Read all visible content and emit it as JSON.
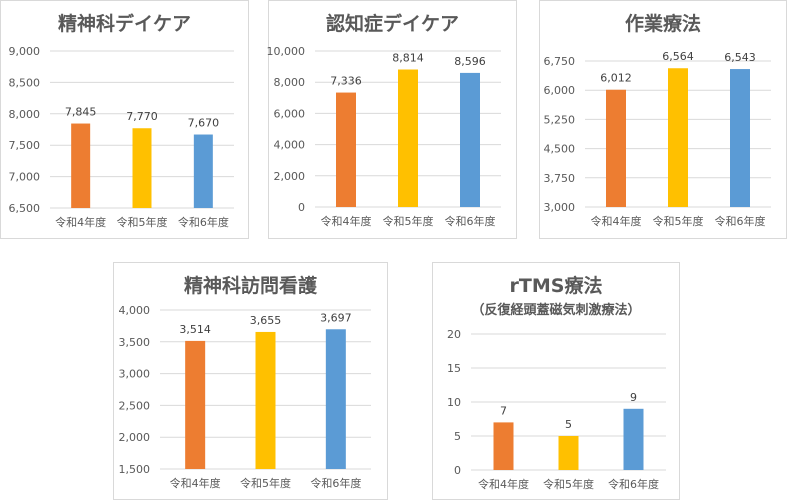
{
  "colors": [
    "#ed7d31",
    "#ffc000",
    "#5b9bd5"
  ],
  "chart_data": [
    {
      "type": "bar",
      "title": "精神科デイケア",
      "categories": [
        "令和4年度",
        "令和5年度",
        "令和6年度"
      ],
      "values": [
        7845,
        7770,
        7670
      ],
      "ylim": [
        6500,
        9000
      ],
      "yticks": [
        6500,
        7000,
        7500,
        8000,
        8500,
        9000
      ],
      "grid": true
    },
    {
      "type": "bar",
      "title": "認知症デイケア",
      "categories": [
        "令和4年度",
        "令和5年度",
        "令和6年度"
      ],
      "values": [
        7336,
        8814,
        8596
      ],
      "ylim": [
        0,
        10000
      ],
      "yticks": [
        0,
        2000,
        4000,
        6000,
        8000,
        10000
      ],
      "grid": true
    },
    {
      "type": "bar",
      "title": "作業療法",
      "categories": [
        "令和4年度",
        "令和5年度",
        "令和6年度"
      ],
      "values": [
        6012,
        6564,
        6543
      ],
      "ylim": [
        3000,
        6750
      ],
      "yticks": [
        3000,
        3750,
        4500,
        5250,
        6000,
        6750
      ],
      "grid": true
    },
    {
      "type": "bar",
      "title": "精神科訪問看護",
      "categories": [
        "令和4年度",
        "令和5年度",
        "令和6年度"
      ],
      "values": [
        3514,
        3655,
        3697
      ],
      "ylim": [
        1500,
        4000
      ],
      "yticks": [
        1500,
        2000,
        2500,
        3000,
        3500,
        4000
      ],
      "grid": true
    },
    {
      "type": "bar",
      "title": "rTMS療法",
      "subtitle": "（反復経頭蓋磁気刺激療法）",
      "categories": [
        "令和4年度",
        "令和5年度",
        "令和6年度"
      ],
      "values": [
        7,
        5,
        9
      ],
      "ylim": [
        0,
        20
      ],
      "yticks": [
        0,
        5,
        10,
        15,
        20
      ],
      "grid": true
    }
  ]
}
